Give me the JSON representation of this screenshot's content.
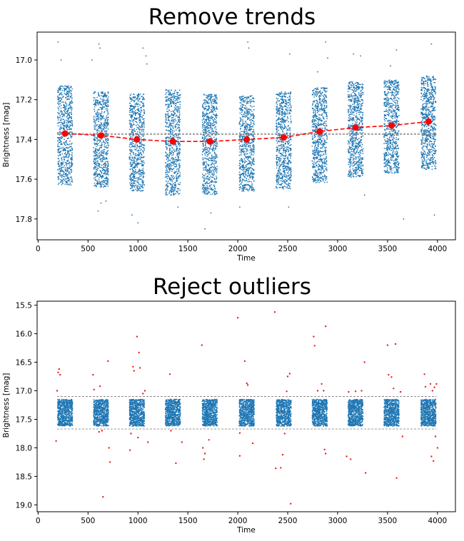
{
  "colors": {
    "points": "#1f77b4",
    "trend": "#ff0000",
    "outliers": "#e8211c",
    "reference": "#888888"
  },
  "chart_data": [
    {
      "type": "scatter",
      "title": "Remove trends",
      "xlabel": "Time",
      "ylabel": "Brightness [mag]",
      "xlim": [
        -10,
        4180
      ],
      "ylim": [
        17.905,
        16.86
      ],
      "y_inverted": true,
      "xticks": [
        0,
        500,
        1000,
        1500,
        2000,
        2500,
        3000,
        3500,
        4000
      ],
      "yticks": [
        17.0,
        17.2,
        17.4,
        17.6,
        17.8
      ],
      "ytick_decimals": 1,
      "point_clusters": {
        "centers": [
          270,
          630,
          990,
          1350,
          1720,
          2090,
          2460,
          2820,
          3180,
          3540,
          3910
        ],
        "half_width": 75,
        "y_low": [
          17.13,
          17.16,
          17.17,
          17.15,
          17.17,
          17.18,
          17.16,
          17.14,
          17.11,
          17.1,
          17.08
        ],
        "y_high": [
          17.63,
          17.64,
          17.66,
          17.68,
          17.68,
          17.66,
          17.65,
          17.62,
          17.59,
          17.57,
          17.55
        ],
        "points_per_cluster": 700
      },
      "trend": {
        "name": "trend",
        "x": [
          270,
          630,
          990,
          1350,
          1720,
          2090,
          2460,
          2820,
          3180,
          3540,
          3910
        ],
        "y": [
          17.37,
          17.38,
          17.4,
          17.41,
          17.41,
          17.4,
          17.39,
          17.36,
          17.34,
          17.33,
          17.31
        ]
      },
      "reference_lines": [
        17.37,
        17.375
      ],
      "stray_points": [
        [
          200,
          16.91
        ],
        [
          230,
          17.0
        ],
        [
          540,
          17.0
        ],
        [
          610,
          16.92
        ],
        [
          620,
          16.94
        ],
        [
          1050,
          16.94
        ],
        [
          1080,
          16.98
        ],
        [
          1090,
          17.02
        ],
        [
          2100,
          16.91
        ],
        [
          2110,
          16.94
        ],
        [
          2520,
          16.97
        ],
        [
          2800,
          17.06
        ],
        [
          2880,
          16.91
        ],
        [
          2900,
          16.99
        ],
        [
          3160,
          16.97
        ],
        [
          3230,
          16.98
        ],
        [
          3530,
          17.03
        ],
        [
          3590,
          16.95
        ],
        [
          3940,
          16.92
        ],
        [
          600,
          17.76
        ],
        [
          630,
          17.72
        ],
        [
          680,
          17.71
        ],
        [
          940,
          17.78
        ],
        [
          1000,
          17.82
        ],
        [
          1400,
          17.74
        ],
        [
          1670,
          17.85
        ],
        [
          1730,
          17.77
        ],
        [
          2020,
          17.74
        ],
        [
          2510,
          17.74
        ],
        [
          3270,
          17.68
        ],
        [
          3660,
          17.8
        ],
        [
          3970,
          17.78
        ]
      ]
    },
    {
      "type": "scatter",
      "title": "Reject outliers",
      "xlabel": "Time",
      "ylabel": "Brightness [mag]",
      "xlim": [
        -10,
        4180
      ],
      "ylim": [
        19.12,
        15.43
      ],
      "y_inverted": true,
      "xticks": [
        0,
        500,
        1000,
        1500,
        2000,
        2500,
        3000,
        3500,
        4000
      ],
      "yticks": [
        15.5,
        16.0,
        16.5,
        17.0,
        17.5,
        18.0,
        18.5,
        19.0
      ],
      "ytick_decimals": 1,
      "point_clusters": {
        "centers": [
          270,
          630,
          990,
          1350,
          1720,
          2090,
          2460,
          2820,
          3180,
          3540,
          3910
        ],
        "half_width": 75,
        "y_low": [
          17.15,
          17.15,
          17.15,
          17.15,
          17.15,
          17.15,
          17.15,
          17.15,
          17.15,
          17.15,
          17.15
        ],
        "y_high": [
          17.62,
          17.62,
          17.62,
          17.62,
          17.62,
          17.62,
          17.62,
          17.62,
          17.62,
          17.62,
          17.62
        ],
        "points_per_cluster": 700
      },
      "reference_lines": [
        17.1,
        17.67
      ],
      "outliers": [
        [
          200,
          16.68
        ],
        [
          210,
          16.62
        ],
        [
          220,
          16.72
        ],
        [
          190,
          17.0
        ],
        [
          180,
          17.88
        ],
        [
          550,
          16.72
        ],
        [
          560,
          16.98
        ],
        [
          620,
          16.92
        ],
        [
          610,
          17.72
        ],
        [
          640,
          17.7
        ],
        [
          650,
          18.86
        ],
        [
          700,
          16.48
        ],
        [
          710,
          18.0
        ],
        [
          720,
          18.25
        ],
        [
          950,
          16.58
        ],
        [
          960,
          16.65
        ],
        [
          990,
          16.05
        ],
        [
          1010,
          16.33
        ],
        [
          1020,
          16.6
        ],
        [
          1050,
          17.05
        ],
        [
          1070,
          17.0
        ],
        [
          1100,
          17.9
        ],
        [
          1000,
          17.82
        ],
        [
          930,
          17.75
        ],
        [
          920,
          18.04
        ],
        [
          1320,
          16.71
        ],
        [
          1330,
          17.7
        ],
        [
          1380,
          18.27
        ],
        [
          1440,
          17.9
        ],
        [
          1640,
          16.2
        ],
        [
          1650,
          18.0
        ],
        [
          1660,
          18.2
        ],
        [
          1670,
          18.1
        ],
        [
          1710,
          17.86
        ],
        [
          2000,
          15.72
        ],
        [
          2020,
          17.74
        ],
        [
          2070,
          16.48
        ],
        [
          2090,
          16.87
        ],
        [
          2100,
          16.9
        ],
        [
          2150,
          17.92
        ],
        [
          2020,
          18.14
        ],
        [
          2370,
          15.62
        ],
        [
          2380,
          18.36
        ],
        [
          2430,
          18.35
        ],
        [
          2450,
          18.12
        ],
        [
          2470,
          17.75
        ],
        [
          2500,
          16.75
        ],
        [
          2520,
          16.7
        ],
        [
          2530,
          18.98
        ],
        [
          2490,
          17.01
        ],
        [
          2760,
          16.05
        ],
        [
          2770,
          16.21
        ],
        [
          2800,
          17.0
        ],
        [
          2840,
          16.88
        ],
        [
          2860,
          17.0
        ],
        [
          2880,
          15.87
        ],
        [
          2870,
          18.03
        ],
        [
          2880,
          18.1
        ],
        [
          3110,
          17.02
        ],
        [
          3130,
          18.2
        ],
        [
          3180,
          17.01
        ],
        [
          3240,
          17.0
        ],
        [
          3270,
          16.5
        ],
        [
          3280,
          18.44
        ],
        [
          3090,
          18.15
        ],
        [
          3500,
          16.2
        ],
        [
          3510,
          16.72
        ],
        [
          3540,
          16.76
        ],
        [
          3560,
          16.96
        ],
        [
          3580,
          16.18
        ],
        [
          3590,
          18.53
        ],
        [
          3630,
          17.02
        ],
        [
          3650,
          17.8
        ],
        [
          3870,
          16.71
        ],
        [
          3880,
          16.93
        ],
        [
          3930,
          16.88
        ],
        [
          3950,
          17.0
        ],
        [
          3970,
          16.94
        ],
        [
          3990,
          16.88
        ],
        [
          4000,
          18.0
        ],
        [
          3940,
          18.15
        ],
        [
          3960,
          18.23
        ],
        [
          3980,
          17.8
        ]
      ]
    }
  ]
}
